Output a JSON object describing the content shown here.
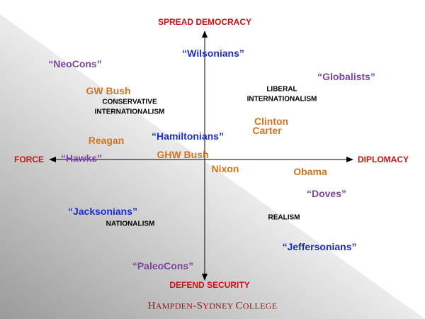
{
  "colors": {
    "axis_label": "#cc1111",
    "blue": "#1c2fc2",
    "purple": "#7a45a0",
    "orange": "#d2741f",
    "black": "#000000",
    "footer": "#8b1a1a",
    "gradient_dark": "#9a9a9a",
    "gradient_light": "#ffffff"
  },
  "axes": {
    "top": "SPREAD DEMOCRACY",
    "bottom": "DEFEND SECURITY",
    "left": "FORCE",
    "right": "DIPLOMACY"
  },
  "schools": {
    "wilsonians": "“Wilsonians”",
    "neocons": "“NeoCons”",
    "globalists": "“Globalists”",
    "hamiltonians": "“Hamiltonians”",
    "hawks": "“Hawks”",
    "doves": "“Doves”",
    "jacksonians": "“Jacksonians”",
    "jeffersonians": "“Jeffersonians”",
    "paleocons": "“PaleoCons”"
  },
  "presidents": {
    "gw_bush": "GW Bush",
    "reagan": "Reagan",
    "ghw_bush": "GHW Bush",
    "nixon": "Nixon",
    "clinton": "Clinton",
    "carter": "Carter",
    "obama": "Obama"
  },
  "quadrants": {
    "conservative_internationalism": "CONSERVATIVE INTERNATIONALISM",
    "liberal_internationalism": "LIBERAL INTERNATIONALISM",
    "nationalism": "NATIONALISM",
    "realism": "REALISM"
  },
  "footer": {
    "h1": "H",
    "r1": "AMPDEN",
    "dash": "-",
    "h2": "S",
    "r2": "YDNEY ",
    "h3": "C",
    "r3": "OLLEGE"
  }
}
